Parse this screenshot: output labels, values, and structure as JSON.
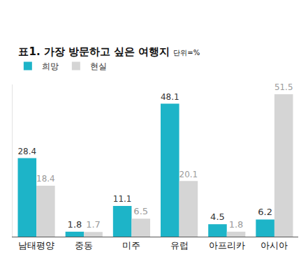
{
  "chart_data": {
    "type": "bar",
    "title": "표1. 가장 방문하고 싶은 여행지",
    "subtitle": "단위=%",
    "categories": [
      "남태평양",
      "중동",
      "미주",
      "유럽",
      "아프리카",
      "아시아"
    ],
    "series": [
      {
        "name": "희망",
        "color": "#1db4c8",
        "values": [
          28.4,
          1.8,
          11.1,
          48.1,
          4.5,
          6.2
        ]
      },
      {
        "name": "현실",
        "color": "#d5d5d5",
        "values": [
          18.4,
          1.7,
          6.5,
          20.1,
          1.8,
          51.5
        ]
      }
    ],
    "ylim": [
      0,
      55
    ],
    "yticks": [],
    "grid": false,
    "legend": "upper left",
    "data_labels": true,
    "tick_labels": "x"
  }
}
